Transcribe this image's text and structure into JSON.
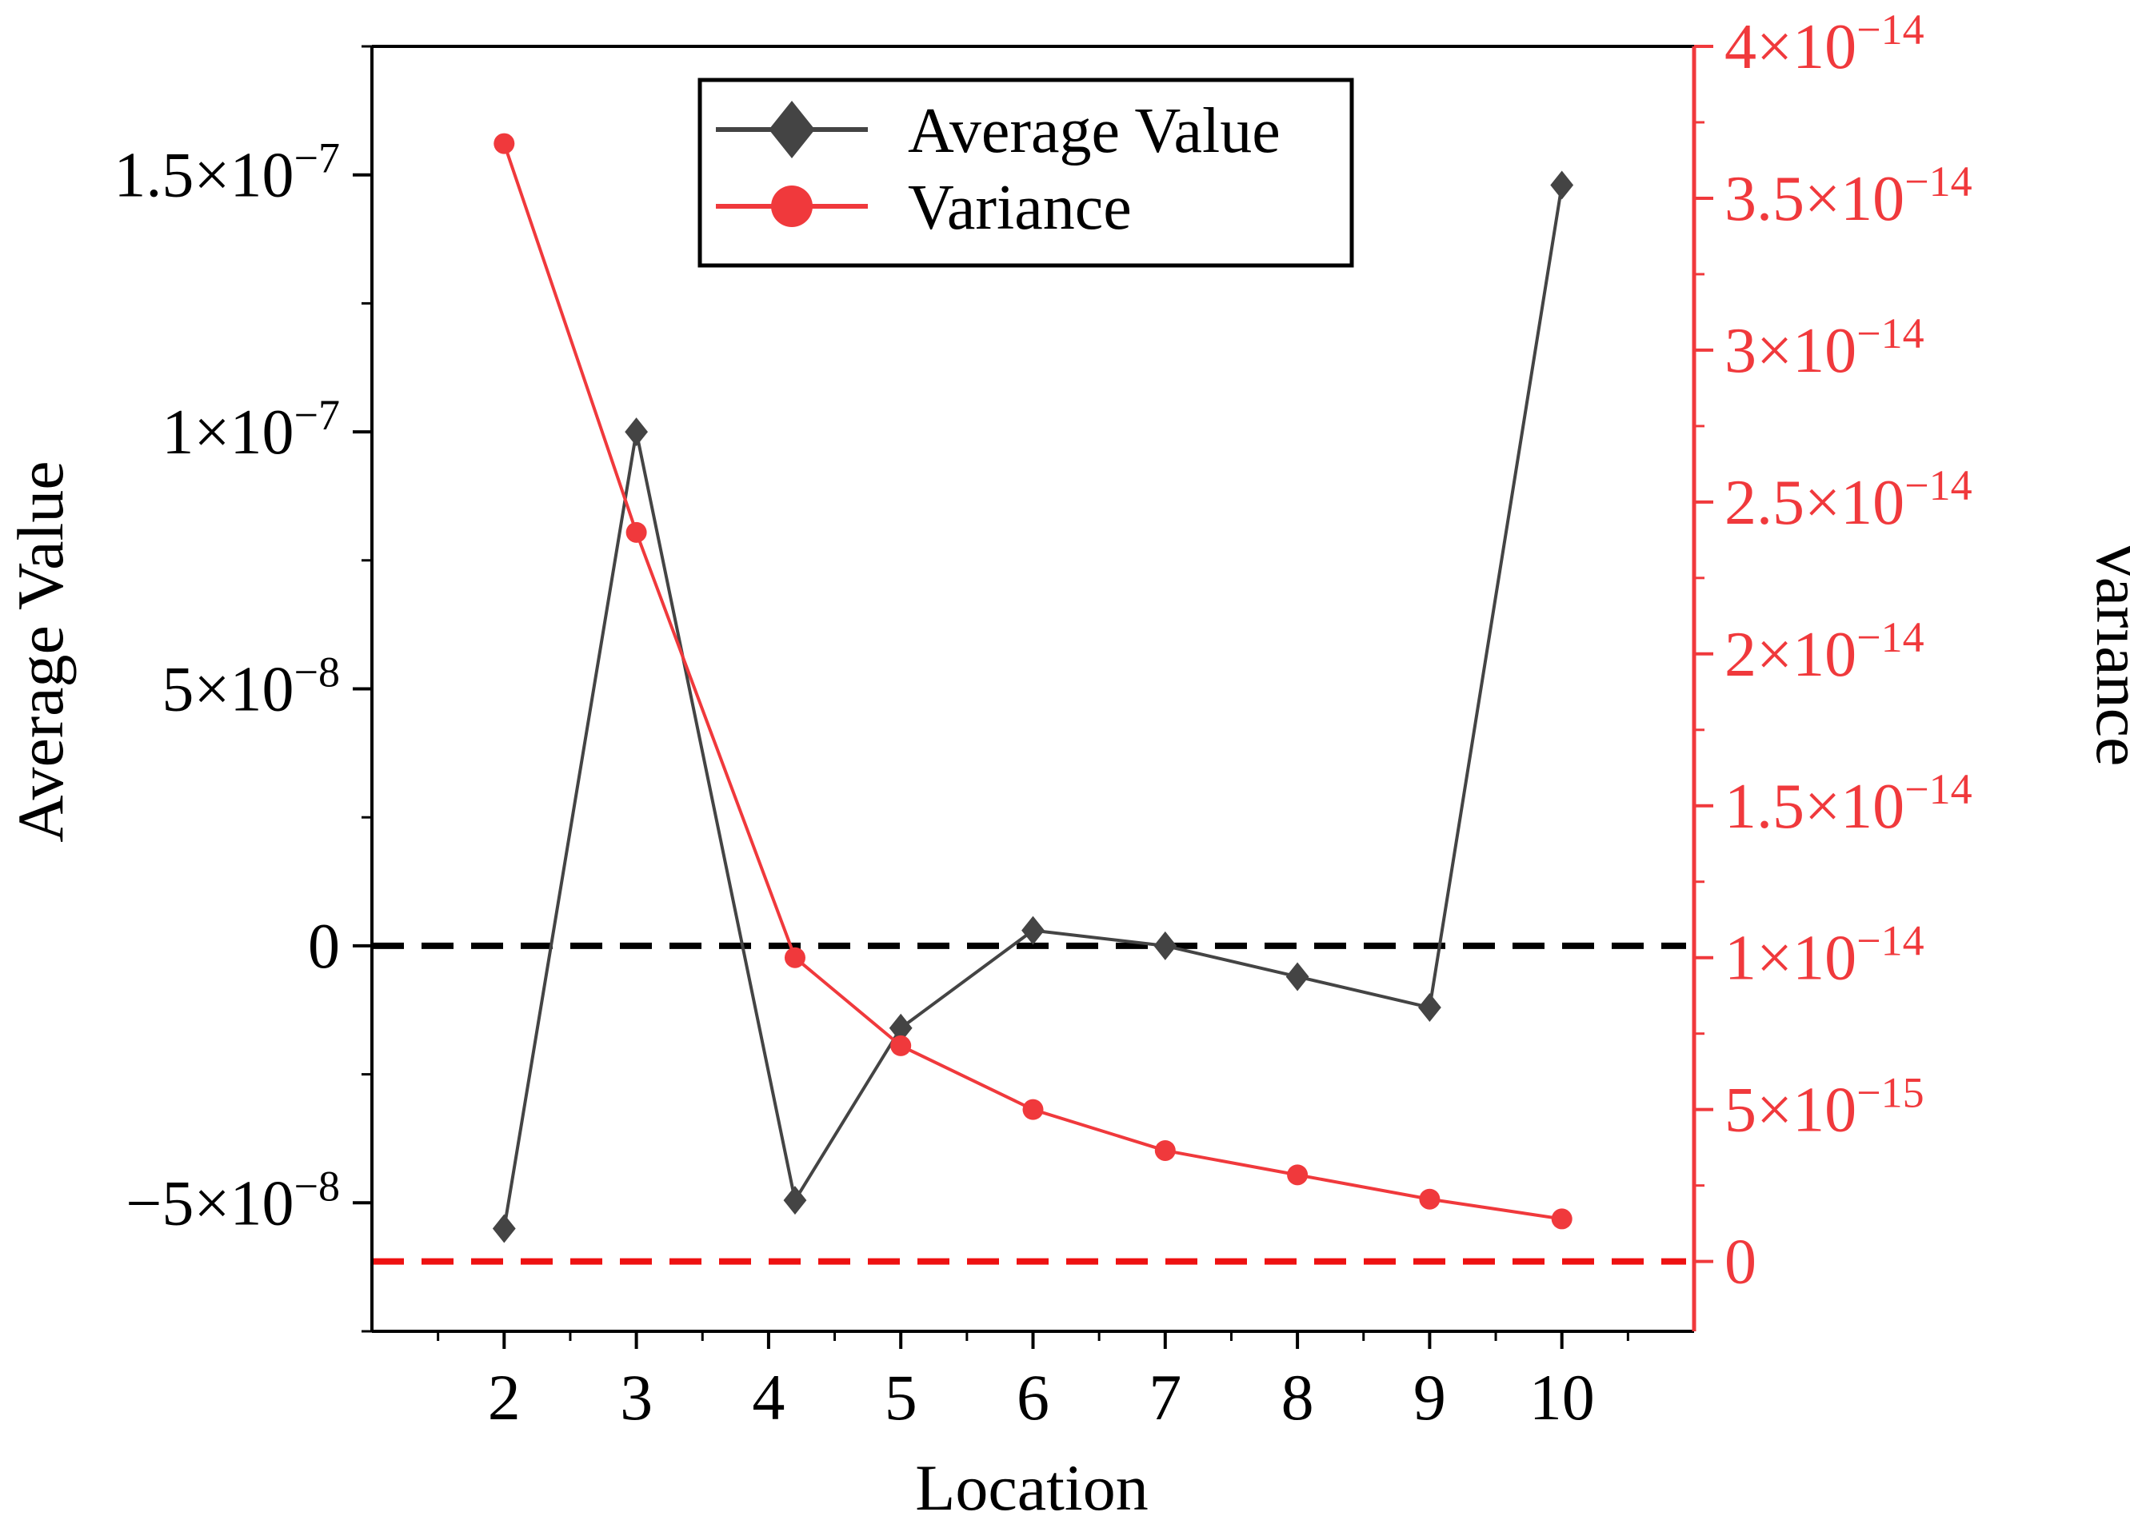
{
  "chart_data": {
    "type": "line",
    "xlabel": "Location",
    "ylabel_left": "Average Value",
    "ylabel_right": "Variance",
    "x_ticks": [
      2,
      3,
      4,
      5,
      6,
      7,
      8,
      9,
      10
    ],
    "x_tick_labels": [
      "2",
      "3",
      "4",
      "5",
      "6",
      "7",
      "8",
      "9",
      "10"
    ],
    "xlim": [
      1,
      11
    ],
    "ylim_left": [
      -7.5e-08,
      1.75e-07
    ],
    "ylim_right": [
      -2.3e-15,
      4e-14
    ],
    "left_ticks": [
      {
        "value": -5e-08,
        "mant": "−5×10",
        "exp": "−8"
      },
      {
        "value": 0,
        "mant": "0",
        "exp": ""
      },
      {
        "value": 5e-08,
        "mant": "5×10",
        "exp": "−8"
      },
      {
        "value": 1e-07,
        "mant": "1×10",
        "exp": "−7"
      },
      {
        "value": 1.5e-07,
        "mant": "1.5×10",
        "exp": "−7"
      }
    ],
    "right_ticks": [
      {
        "value": 0,
        "mant": "0",
        "exp": ""
      },
      {
        "value": 5e-15,
        "mant": "5×10",
        "exp": "−15"
      },
      {
        "value": 1e-14,
        "mant": "1×10",
        "exp": "−14"
      },
      {
        "value": 1.5e-14,
        "mant": "1.5×10",
        "exp": "−14"
      },
      {
        "value": 2e-14,
        "mant": "2×10",
        "exp": "−14"
      },
      {
        "value": 2.5e-14,
        "mant": "2.5×10",
        "exp": "−14"
      },
      {
        "value": 3e-14,
        "mant": "3×10",
        "exp": "−14"
      },
      {
        "value": 3.5e-14,
        "mant": "3.5×10",
        "exp": "−14"
      },
      {
        "value": 4e-14,
        "mant": "4×10",
        "exp": "−14"
      }
    ],
    "series": [
      {
        "name": "Average Value",
        "axis": "left",
        "color": "#444444",
        "marker": "diamond",
        "x": [
          2,
          3,
          4.2,
          5,
          6,
          7,
          8,
          9,
          10
        ],
        "values": [
          -5.5e-08,
          1e-07,
          -4.95e-08,
          -1.6e-08,
          3e-09,
          0.0,
          -6e-09,
          -1.2e-08,
          1.48e-07
        ]
      },
      {
        "name": "Variance",
        "axis": "right",
        "color": "#f0393c",
        "marker": "circle",
        "x": [
          2,
          3,
          4.2,
          5,
          6,
          7,
          8,
          9,
          10
        ],
        "values": [
          3.68e-14,
          2.4e-14,
          1e-14,
          7.1e-15,
          5e-15,
          3.65e-15,
          2.85e-15,
          2.05e-15,
          1.4e-15
        ]
      }
    ],
    "reference_lines": [
      {
        "axis": "left",
        "value": 0,
        "color": "#000000",
        "style": "dashed"
      },
      {
        "axis": "right",
        "value": 0,
        "color": "#ee1111",
        "style": "dashed"
      }
    ],
    "legend_position": "top-center",
    "grid": false
  }
}
